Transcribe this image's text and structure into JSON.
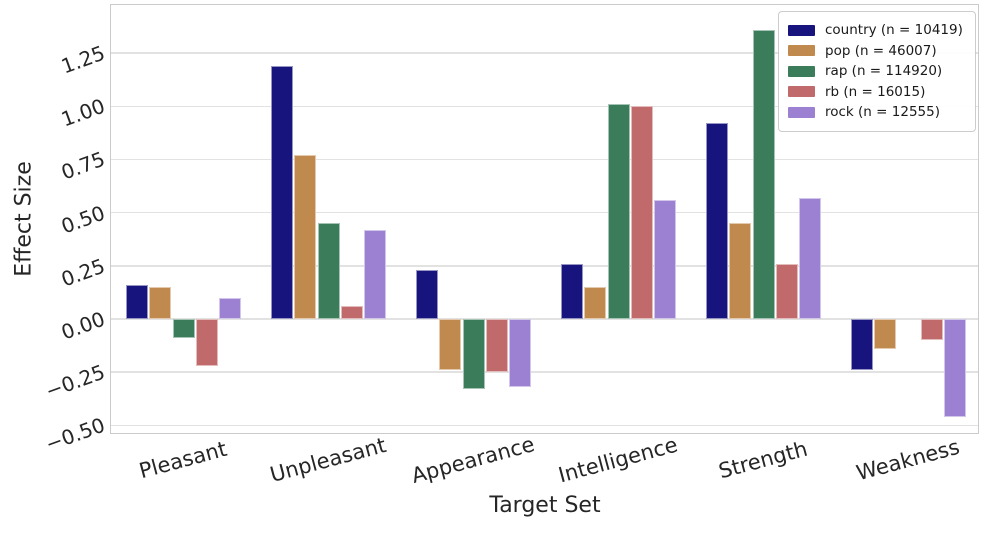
{
  "chart_data": {
    "type": "bar",
    "title": "",
    "xlabel": "Target Set",
    "ylabel": "Effect Size",
    "categories": [
      "Pleasant",
      "Unpleasant",
      "Appearance",
      "Intelligence",
      "Strength",
      "Weakness"
    ],
    "series": [
      {
        "id": "country",
        "name": "country (n = 10419)",
        "color": "#17157d",
        "values": [
          0.16,
          1.19,
          0.23,
          0.26,
          0.92,
          -0.24
        ]
      },
      {
        "id": "pop",
        "name": "pop (n = 46007)",
        "color": "#c0894d",
        "values": [
          0.15,
          0.77,
          -0.24,
          0.15,
          0.45,
          -0.14
        ]
      },
      {
        "id": "rap",
        "name": "rap (n = 114920)",
        "color": "#3b7d5b",
        "values": [
          -0.09,
          0.45,
          -0.33,
          1.01,
          1.36,
          0.0
        ]
      },
      {
        "id": "rb",
        "name": "rb (n = 16015)",
        "color": "#c16a6b",
        "values": [
          -0.22,
          0.06,
          -0.25,
          1.0,
          0.26,
          -0.1
        ]
      },
      {
        "id": "rock",
        "name": "rock (n = 12555)",
        "color": "#9c81d3",
        "values": [
          0.1,
          0.42,
          -0.32,
          0.56,
          0.57,
          -0.46
        ]
      }
    ],
    "yticks": [
      1.25,
      1.0,
      0.75,
      0.5,
      0.25,
      0.0,
      -0.25,
      -0.5
    ],
    "ytick_labels": [
      "1.25",
      "1.00",
      "0.75",
      "0.50",
      "0.25",
      "0.00",
      "−0.25",
      "−0.50"
    ],
    "ylim": [
      -0.54,
      1.48
    ],
    "grid": "horizontal",
    "legend_position": "upper right",
    "colors": {
      "grid": "#e2e2e2",
      "spine": "#cbcbcb",
      "text": "#262626"
    }
  }
}
